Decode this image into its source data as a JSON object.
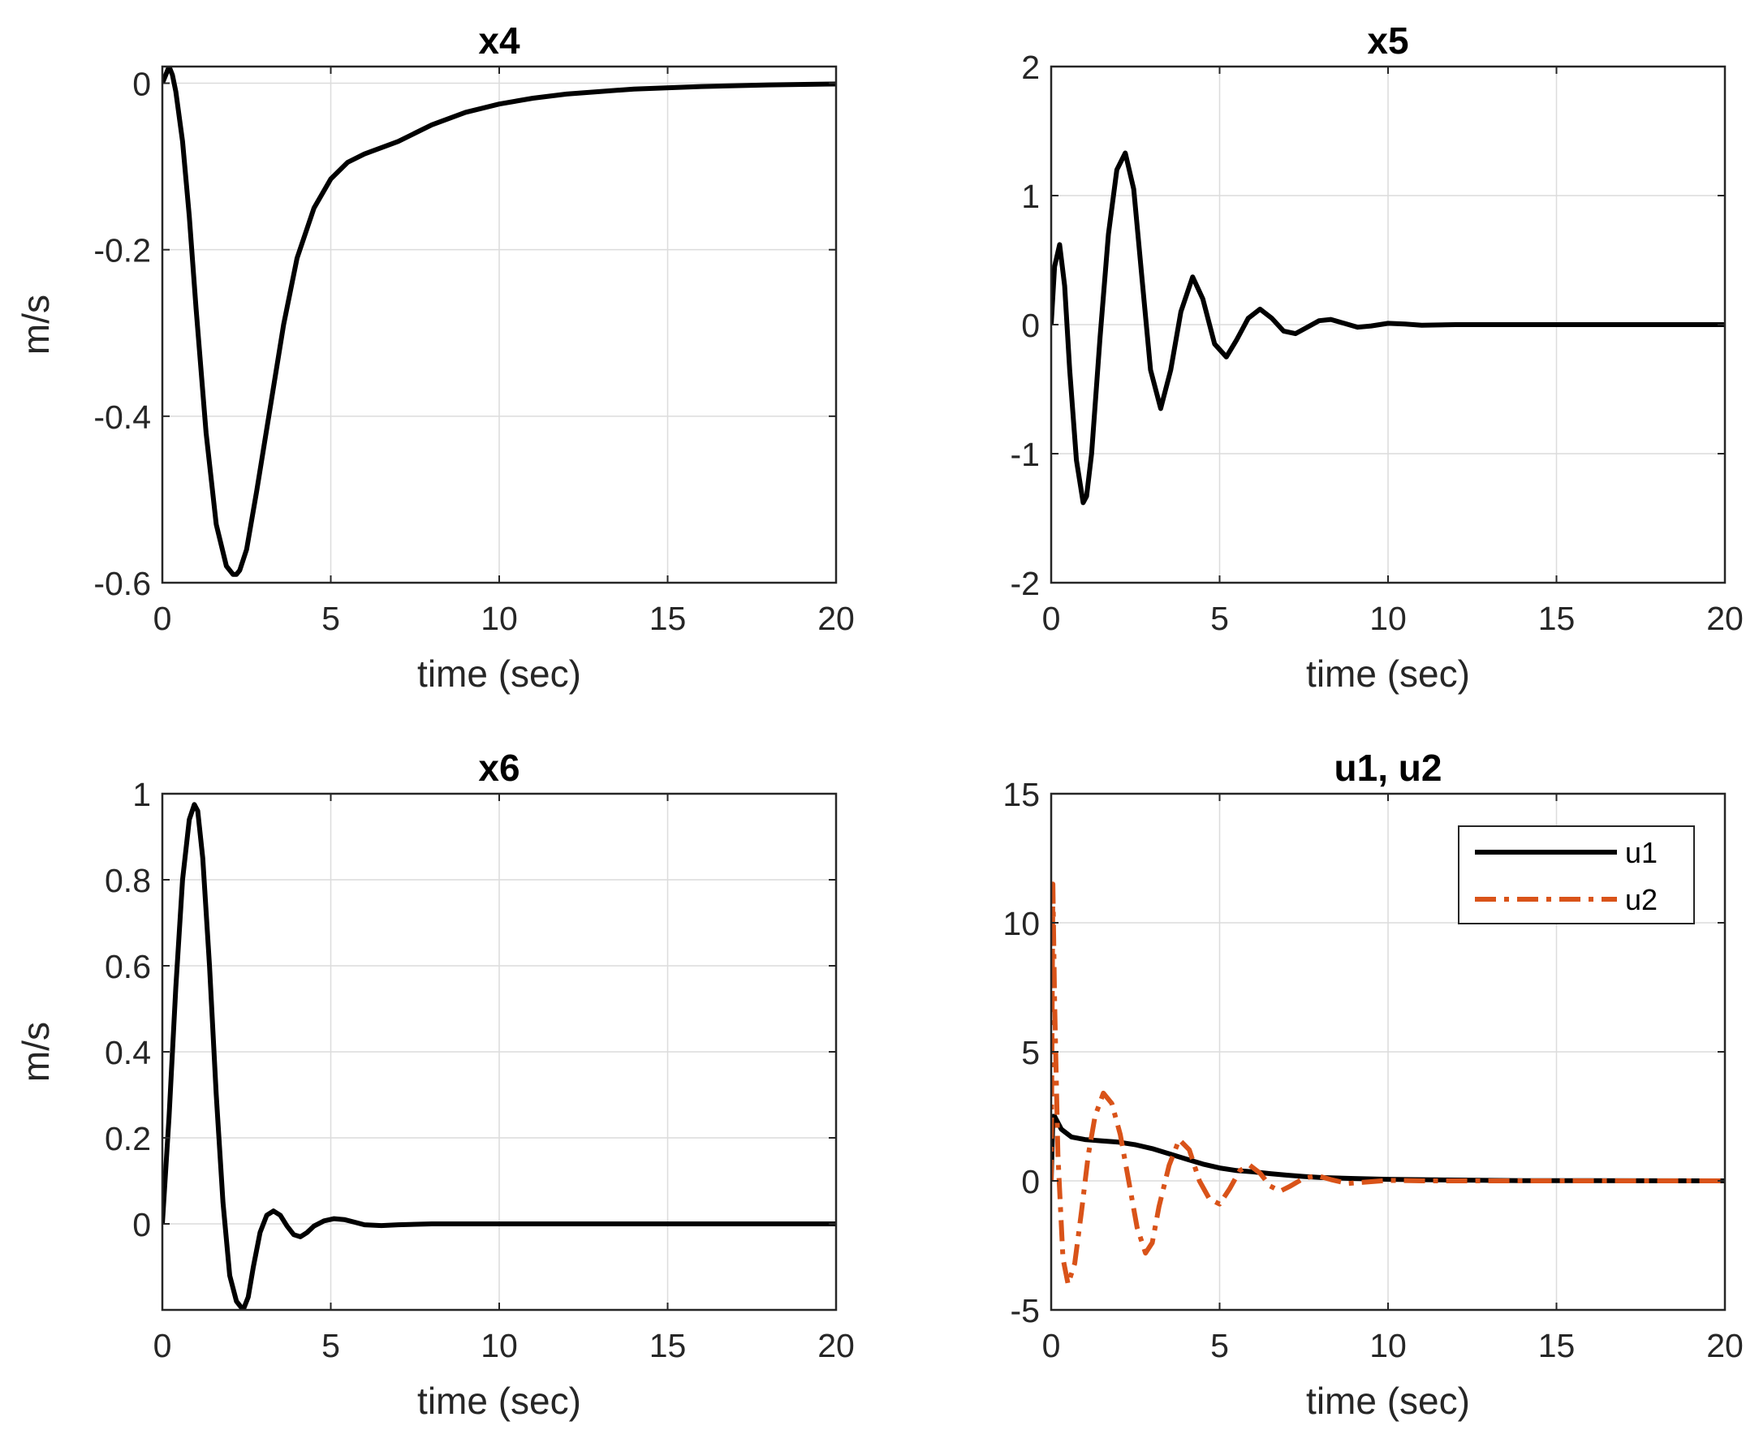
{
  "colors": {
    "series1": "#000000",
    "series2": "#D95319",
    "axis": "#262626",
    "grid": "#dcdcdc"
  },
  "chart_data": [
    {
      "type": "line",
      "title": "x4",
      "xlabel": "time (sec)",
      "ylabel": "m/s",
      "xlim": [
        0,
        20
      ],
      "ylim": [
        -0.6,
        0.02
      ],
      "xticks": [
        0,
        5,
        10,
        15,
        20
      ],
      "xtick_labels": [
        "0",
        "5",
        "10",
        "15",
        "20"
      ],
      "yticks": [
        -0.6,
        -0.4,
        -0.2,
        0
      ],
      "ytick_labels": [
        "-0.6",
        "-0.4",
        "-0.2",
        "0"
      ],
      "grid": true,
      "series": [
        {
          "name": "x4",
          "color": "#000000",
          "style": "solid",
          "x": [
            0,
            0.1,
            0.2,
            0.3,
            0.4,
            0.6,
            0.8,
            1.0,
            1.3,
            1.6,
            1.9,
            2.1,
            2.2,
            2.3,
            2.5,
            2.8,
            3.2,
            3.6,
            4.0,
            4.5,
            5.0,
            5.5,
            6.0,
            7.0,
            8.0,
            9.0,
            10.0,
            11.0,
            12.0,
            14.0,
            16.0,
            18.0,
            20.0
          ],
          "y": [
            0,
            0.01,
            0.02,
            0.01,
            -0.01,
            -0.07,
            -0.16,
            -0.27,
            -0.42,
            -0.53,
            -0.58,
            -0.59,
            -0.59,
            -0.585,
            -0.56,
            -0.49,
            -0.39,
            -0.29,
            -0.21,
            -0.15,
            -0.115,
            -0.095,
            -0.085,
            -0.07,
            -0.05,
            -0.035,
            -0.025,
            -0.018,
            -0.013,
            -0.007,
            -0.004,
            -0.002,
            -0.001
          ]
        }
      ]
    },
    {
      "type": "line",
      "title": "x5",
      "xlabel": "time (sec)",
      "ylabel": "",
      "xlim": [
        0,
        20
      ],
      "ylim": [
        -2,
        2
      ],
      "xticks": [
        0,
        5,
        10,
        15,
        20
      ],
      "xtick_labels": [
        "0",
        "5",
        "10",
        "15",
        "20"
      ],
      "yticks": [
        -2,
        -1,
        0,
        1,
        2
      ],
      "ytick_labels": [
        "-2",
        "-1",
        "0",
        "1",
        "2"
      ],
      "grid": true,
      "series": [
        {
          "name": "x5",
          "color": "#000000",
          "style": "solid",
          "x": [
            0,
            0.1,
            0.25,
            0.4,
            0.55,
            0.75,
            0.95,
            1.05,
            1.2,
            1.45,
            1.7,
            1.95,
            2.2,
            2.45,
            2.7,
            2.95,
            3.25,
            3.55,
            3.85,
            4.2,
            4.5,
            4.85,
            5.2,
            5.5,
            5.85,
            6.2,
            6.55,
            6.9,
            7.25,
            7.6,
            7.95,
            8.3,
            8.7,
            9.1,
            9.5,
            10.0,
            10.5,
            11.0,
            12.0,
            13.0,
            14.0,
            16.0,
            18.0,
            20.0
          ],
          "y": [
            0,
            0.45,
            0.62,
            0.3,
            -0.35,
            -1.05,
            -1.38,
            -1.33,
            -1.0,
            -0.1,
            0.7,
            1.2,
            1.33,
            1.05,
            0.35,
            -0.35,
            -0.65,
            -0.35,
            0.1,
            0.37,
            0.2,
            -0.15,
            -0.25,
            -0.12,
            0.05,
            0.12,
            0.05,
            -0.05,
            -0.07,
            -0.02,
            0.03,
            0.04,
            0.01,
            -0.02,
            -0.01,
            0.01,
            0.005,
            -0.005,
            0,
            0,
            0,
            0,
            0,
            0
          ]
        }
      ]
    },
    {
      "type": "line",
      "title": "x6",
      "xlabel": "time (sec)",
      "ylabel": "m/s",
      "xlim": [
        0,
        20
      ],
      "ylim": [
        -0.2,
        1.0
      ],
      "xticks": [
        0,
        5,
        10,
        15,
        20
      ],
      "xtick_labels": [
        "0",
        "5",
        "10",
        "15",
        "20"
      ],
      "yticks": [
        0,
        0.2,
        0.4,
        0.6,
        0.8,
        1
      ],
      "ytick_labels": [
        "0",
        "0.2",
        "0.4",
        "0.6",
        "0.8",
        "1"
      ],
      "grid": true,
      "series": [
        {
          "name": "x6",
          "color": "#000000",
          "style": "solid",
          "x": [
            0,
            0.2,
            0.4,
            0.6,
            0.8,
            0.95,
            1.05,
            1.2,
            1.4,
            1.6,
            1.8,
            2.0,
            2.2,
            2.4,
            2.55,
            2.7,
            2.9,
            3.1,
            3.3,
            3.5,
            3.7,
            3.9,
            4.1,
            4.3,
            4.5,
            4.8,
            5.1,
            5.4,
            5.7,
            6.0,
            6.5,
            7.0,
            8.0,
            10.0,
            15.0,
            20.0
          ],
          "y": [
            0,
            0.25,
            0.55,
            0.8,
            0.94,
            0.975,
            0.96,
            0.85,
            0.6,
            0.3,
            0.05,
            -0.12,
            -0.18,
            -0.2,
            -0.17,
            -0.1,
            -0.02,
            0.02,
            0.03,
            0.02,
            -0.005,
            -0.025,
            -0.03,
            -0.02,
            -0.005,
            0.007,
            0.012,
            0.01,
            0.004,
            -0.002,
            -0.004,
            -0.002,
            0,
            0,
            0,
            0
          ]
        }
      ]
    },
    {
      "type": "line",
      "title": "u1, u2",
      "xlabel": "time (sec)",
      "ylabel": "",
      "xlim": [
        0,
        20
      ],
      "ylim": [
        -5,
        15
      ],
      "xticks": [
        0,
        5,
        10,
        15,
        20
      ],
      "xtick_labels": [
        "0",
        "5",
        "10",
        "15",
        "20"
      ],
      "yticks": [
        -5,
        0,
        5,
        10,
        15
      ],
      "ytick_labels": [
        "-5",
        "0",
        "5",
        "10",
        "15"
      ],
      "grid": true,
      "legend": {
        "position": "top-right",
        "entries": [
          "u1",
          "u2"
        ]
      },
      "series": [
        {
          "name": "u1",
          "color": "#000000",
          "style": "solid",
          "x": [
            0,
            0.05,
            0.1,
            0.3,
            0.6,
            1.0,
            1.5,
            2.0,
            2.5,
            3.0,
            3.5,
            4.0,
            4.5,
            5.0,
            5.5,
            6.0,
            6.5,
            7.0,
            7.5,
            8.0,
            9.0,
            10.0,
            12.0,
            14.0,
            16.0,
            20.0
          ],
          "y": [
            0,
            2.5,
            2.5,
            2.0,
            1.7,
            1.6,
            1.55,
            1.5,
            1.4,
            1.25,
            1.05,
            0.85,
            0.65,
            0.5,
            0.4,
            0.35,
            0.28,
            0.22,
            0.17,
            0.13,
            0.09,
            0.06,
            0.03,
            0.01,
            0.005,
            0
          ]
        },
        {
          "name": "u2",
          "color": "#D95319",
          "style": "dashdot",
          "x": [
            0,
            0.05,
            0.1,
            0.2,
            0.35,
            0.5,
            0.7,
            0.9,
            1.1,
            1.3,
            1.55,
            1.8,
            2.05,
            2.3,
            2.55,
            2.8,
            3.0,
            3.2,
            3.5,
            3.8,
            4.1,
            4.4,
            4.7,
            5.0,
            5.3,
            5.6,
            5.9,
            6.2,
            6.5,
            6.8,
            7.1,
            7.5,
            7.9,
            8.3,
            8.8,
            9.3,
            10.0,
            11.0,
            12.0,
            14.0,
            16.0,
            20.0
          ],
          "y": [
            0,
            11.5,
            7.0,
            1.0,
            -3.0,
            -4.0,
            -3.2,
            -1.2,
            1.0,
            2.5,
            3.4,
            3.0,
            1.8,
            0.0,
            -1.8,
            -2.8,
            -2.4,
            -1.0,
            0.6,
            1.6,
            1.2,
            0.0,
            -0.7,
            -0.9,
            -0.3,
            0.4,
            0.6,
            0.3,
            -0.2,
            -0.4,
            -0.2,
            0.1,
            0.2,
            0.05,
            -0.1,
            -0.05,
            0.02,
            0,
            0,
            0,
            0,
            0
          ]
        }
      ]
    }
  ]
}
